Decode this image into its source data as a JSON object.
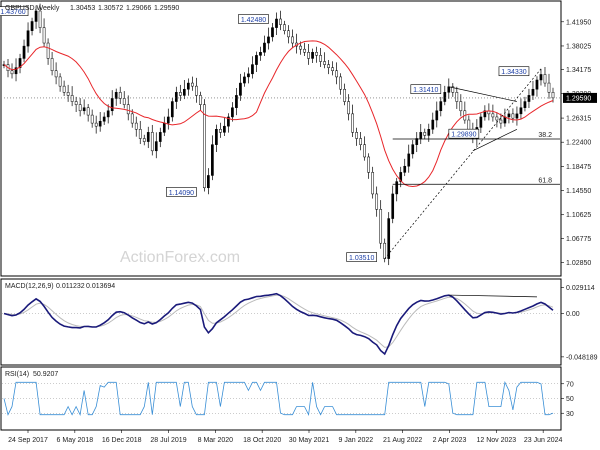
{
  "chart_data": [
    {
      "type": "candlestick",
      "title": "GBPUSD,Weekly",
      "ohlc": {
        "open": "1.30453",
        "high": "1.30572",
        "low": "1.29066",
        "close": "1.29590"
      },
      "price_axis": {
        "ticks": [
          "1.41950",
          "1.38025",
          "1.34175",
          "1.30290",
          "1.26315",
          "1.22400",
          "1.18475",
          "1.14550",
          "1.10625",
          "1.06775",
          "1.02850"
        ],
        "ylim": [
          1.01,
          1.45
        ]
      },
      "current_price": "1.29590",
      "x_ticks": [
        "24 Sep 2017",
        "6 May 2018",
        "16 Dec 2018",
        "28 Jul 2019",
        "8 Mar 2020",
        "18 Oct 2020",
        "30 May 2021",
        "9 Jan 2022",
        "21 Aug 2022",
        "2 Apr 2023",
        "12 Nov 2023",
        "23 Jun 2024"
      ],
      "price_labels": [
        "1.43760",
        "1.42480",
        "1.14090",
        "1.03510",
        "1.31410",
        "1.34330",
        "1.29890"
      ],
      "fib_levels": [
        {
          "label": "38.2",
          "value": 1.2292
        },
        {
          "label": "61.8",
          "value": 1.1557
        }
      ],
      "watermark": "ActionForex.com",
      "series": [
        {
          "values": [
            1.35,
            1.34,
            1.335,
            1.345,
            1.36,
            1.38,
            1.405,
            1.42,
            1.437,
            1.41,
            1.385,
            1.36,
            1.34,
            1.33,
            1.315,
            1.305,
            1.3,
            1.29,
            1.285,
            1.275,
            1.28,
            1.268,
            1.255,
            1.25,
            1.258,
            1.265,
            1.275,
            1.295,
            1.305,
            1.295,
            1.285,
            1.27,
            1.255,
            1.245,
            1.23,
            1.225,
            1.24,
            1.21,
            1.225,
            1.24,
            1.255,
            1.265,
            1.29,
            1.305,
            1.3,
            1.31,
            1.32,
            1.315,
            1.3,
            1.285,
            1.15,
            1.17,
            1.22,
            1.245,
            1.24,
            1.25,
            1.265,
            1.28,
            1.3,
            1.32,
            1.33,
            1.335,
            1.35,
            1.365,
            1.37,
            1.385,
            1.395,
            1.41,
            1.424,
            1.415,
            1.405,
            1.395,
            1.385,
            1.38,
            1.375,
            1.37,
            1.36,
            1.37,
            1.365,
            1.355,
            1.35,
            1.345,
            1.34,
            1.33,
            1.31,
            1.29,
            1.27,
            1.24,
            1.23,
            1.22,
            1.2,
            1.175,
            1.14,
            1.115,
            1.06,
            1.035,
            1.1,
            1.14,
            1.16,
            1.175,
            1.185,
            1.205,
            1.22,
            1.23,
            1.24,
            1.235,
            1.245,
            1.26,
            1.275,
            1.29,
            1.305,
            1.314,
            1.305,
            1.29,
            1.275,
            1.26,
            1.245,
            1.23,
            1.248,
            1.265,
            1.275,
            1.27,
            1.265,
            1.26,
            1.255,
            1.265,
            1.27,
            1.263,
            1.27,
            1.28,
            1.29,
            1.3,
            1.31,
            1.325,
            1.334,
            1.32,
            1.305,
            1.296
          ]
        },
        {
          "name": "MACD(12,26,9)",
          "values": [
            "0.011232",
            "0.013694"
          ]
        },
        {
          "name": "RSI(14)",
          "values": [
            "50.9207"
          ]
        }
      ],
      "macd_axis": {
        "ticks": [
          "0.029114",
          "0.00",
          "-0.048189"
        ],
        "ylim": [
          -0.055,
          0.035
        ]
      },
      "rsi_axis": {
        "ticks": [
          "70",
          "50",
          "30"
        ],
        "ylim": [
          10,
          90
        ]
      }
    }
  ]
}
